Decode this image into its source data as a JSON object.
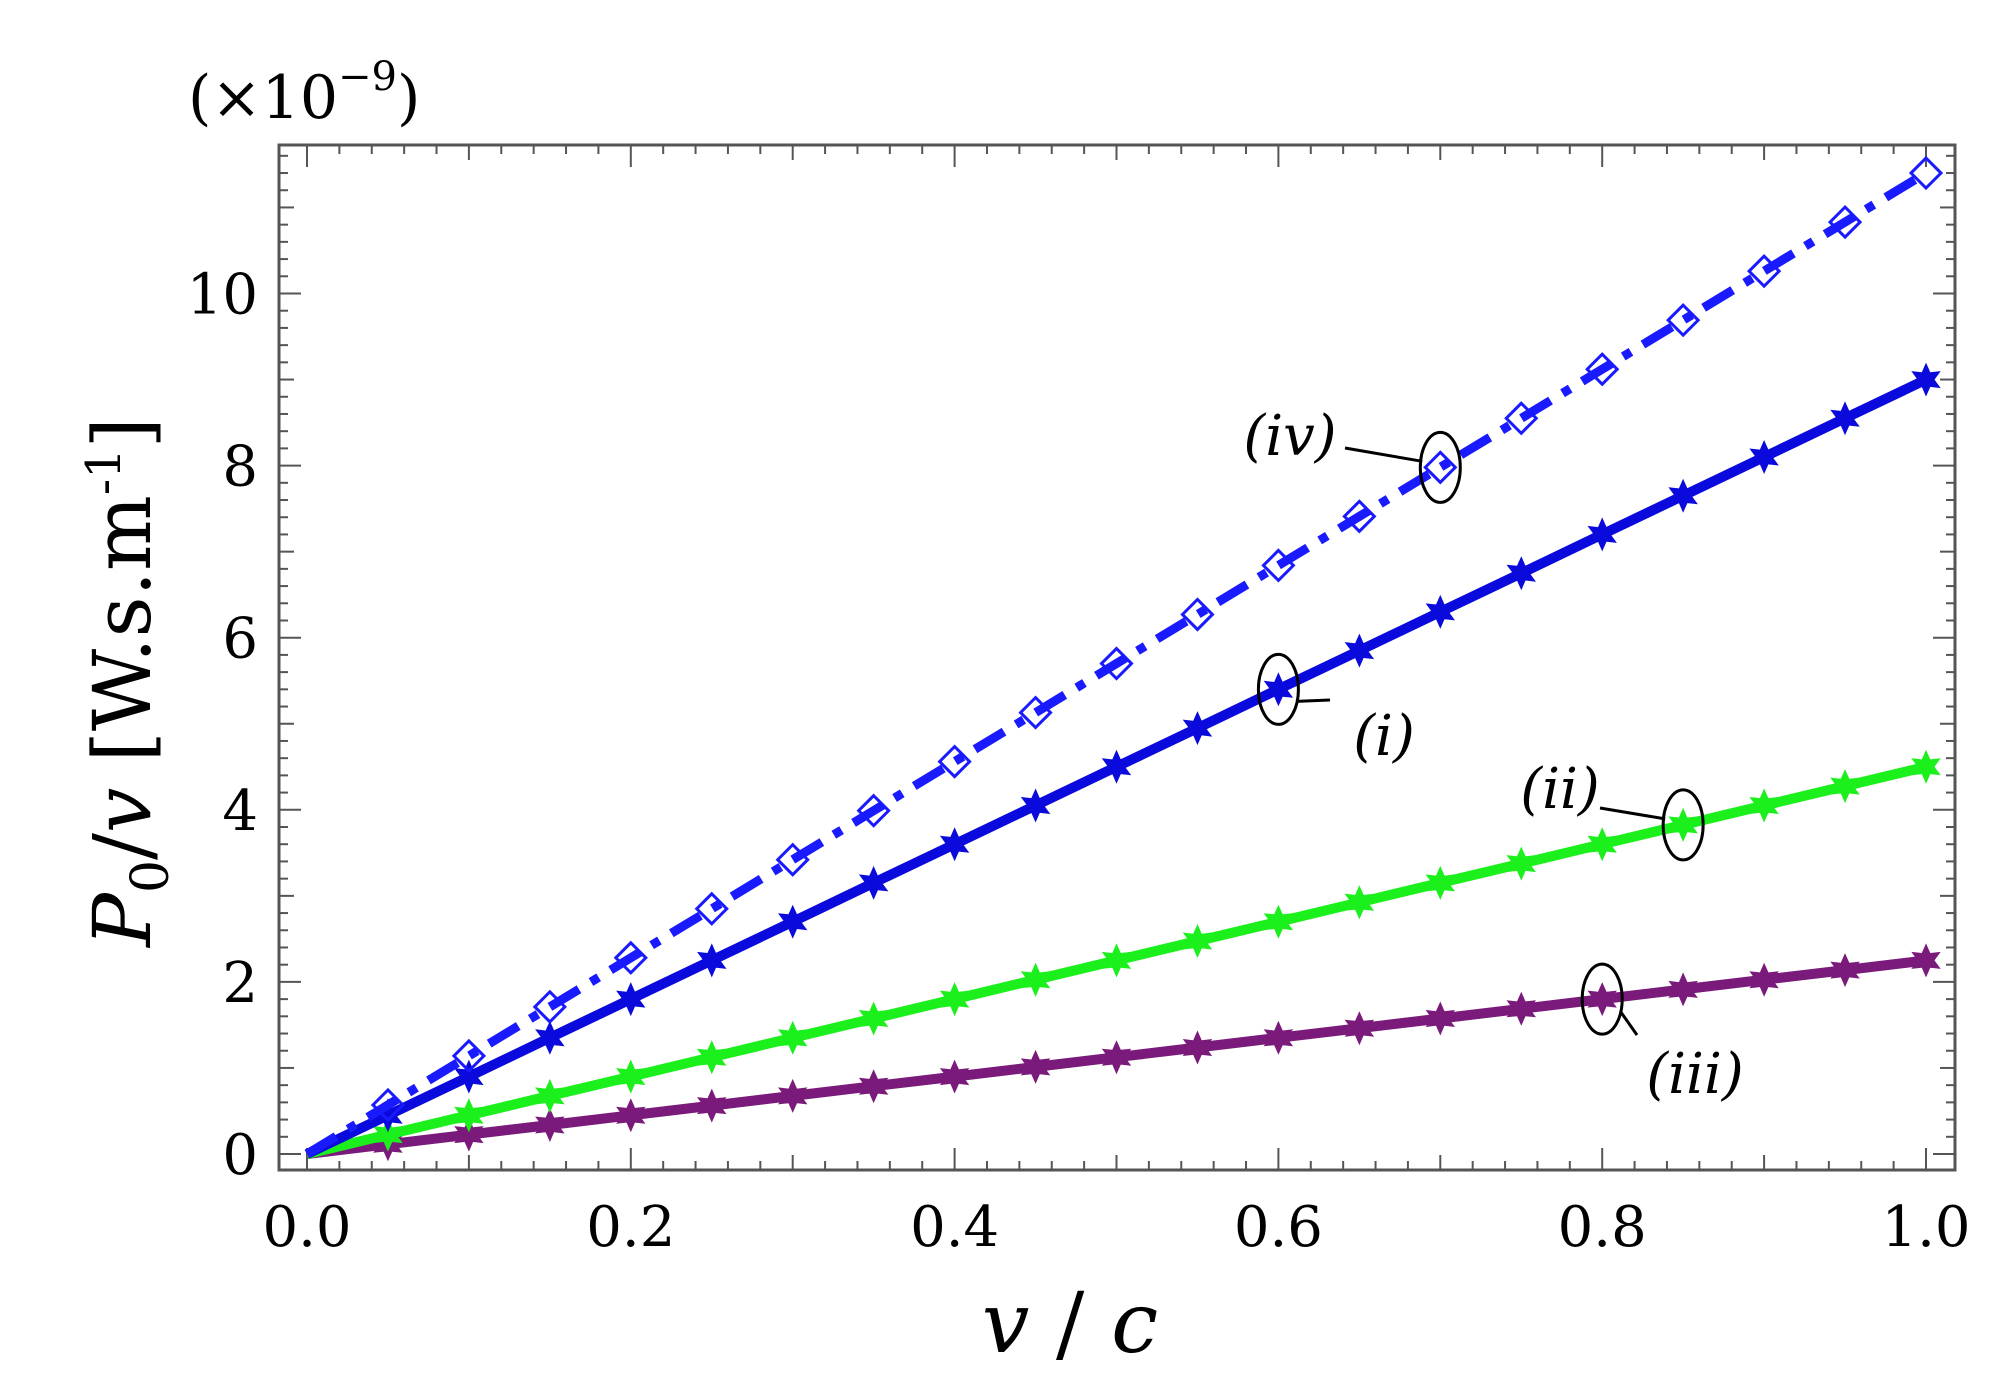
{
  "chart_data": {
    "type": "line",
    "title": "",
    "scale_note": "(×10",
    "scale_exponent": "−9",
    "scale_close": ")",
    "xlabel": {
      "v": "v",
      "slash": " / ",
      "c": "c"
    },
    "ylabel": {
      "P": "P",
      "sub": "0",
      "slash": "/",
      "v": "v",
      "unit": " [W.s.m",
      "sup": "-1",
      "close": "]"
    },
    "xlim": [
      0,
      1.0
    ],
    "ylim": [
      0,
      11.7
    ],
    "xticks": [
      0.0,
      0.2,
      0.4,
      0.6,
      0.8,
      1.0
    ],
    "xtick_labels": [
      "0.0",
      "0.2",
      "0.4",
      "0.6",
      "0.8",
      "1.0"
    ],
    "yticks": [
      0,
      2,
      4,
      6,
      8,
      10
    ],
    "ytick_labels": [
      "0",
      "2",
      "4",
      "6",
      "8",
      "10"
    ],
    "x": [
      0.0,
      0.05,
      0.1,
      0.15,
      0.2,
      0.25,
      0.3,
      0.35,
      0.4,
      0.45,
      0.5,
      0.55,
      0.6,
      0.65,
      0.7,
      0.75,
      0.8,
      0.85,
      0.9,
      0.95,
      1.0
    ],
    "series": [
      {
        "name": "(iv)",
        "color": "#1a1aff",
        "line": "dashdot",
        "marker": "diamond",
        "values": [
          0,
          0.57,
          1.14,
          1.71,
          2.28,
          2.85,
          3.42,
          3.99,
          4.56,
          5.13,
          5.7,
          6.27,
          6.84,
          7.41,
          7.98,
          8.55,
          9.12,
          9.69,
          10.26,
          10.83,
          11.4
        ]
      },
      {
        "name": "(i)",
        "color": "#0a0adc",
        "line": "solid",
        "marker": "star",
        "values": [
          0,
          0.45,
          0.9,
          1.35,
          1.8,
          2.25,
          2.7,
          3.15,
          3.6,
          4.05,
          4.5,
          4.95,
          5.4,
          5.85,
          6.3,
          6.75,
          7.2,
          7.65,
          8.1,
          8.55,
          9.0
        ]
      },
      {
        "name": "(ii)",
        "color": "#1cf01c",
        "line": "solid",
        "marker": "star",
        "values": [
          0,
          0.225,
          0.45,
          0.675,
          0.9,
          1.125,
          1.35,
          1.575,
          1.8,
          2.025,
          2.25,
          2.475,
          2.7,
          2.925,
          3.15,
          3.375,
          3.6,
          3.825,
          4.05,
          4.275,
          4.5
        ]
      },
      {
        "name": "(iii)",
        "color": "#7a1a7a",
        "line": "solid",
        "marker": "star",
        "values": [
          0,
          0.1125,
          0.225,
          0.3375,
          0.45,
          0.5625,
          0.675,
          0.7875,
          0.9,
          1.0125,
          1.125,
          1.2375,
          1.35,
          1.4625,
          1.575,
          1.6875,
          1.8,
          1.9125,
          2.025,
          2.1375,
          2.25
        ]
      }
    ],
    "annotations": [
      {
        "text": "(iv)",
        "series": "(iv)",
        "at_x": 0.7
      },
      {
        "text": "(i)",
        "series": "(i)",
        "at_x": 0.6
      },
      {
        "text": "(ii)",
        "series": "(ii)",
        "at_x": 0.85
      },
      {
        "text": "(iii)",
        "series": "(iii)",
        "at_x": 0.8
      }
    ]
  }
}
